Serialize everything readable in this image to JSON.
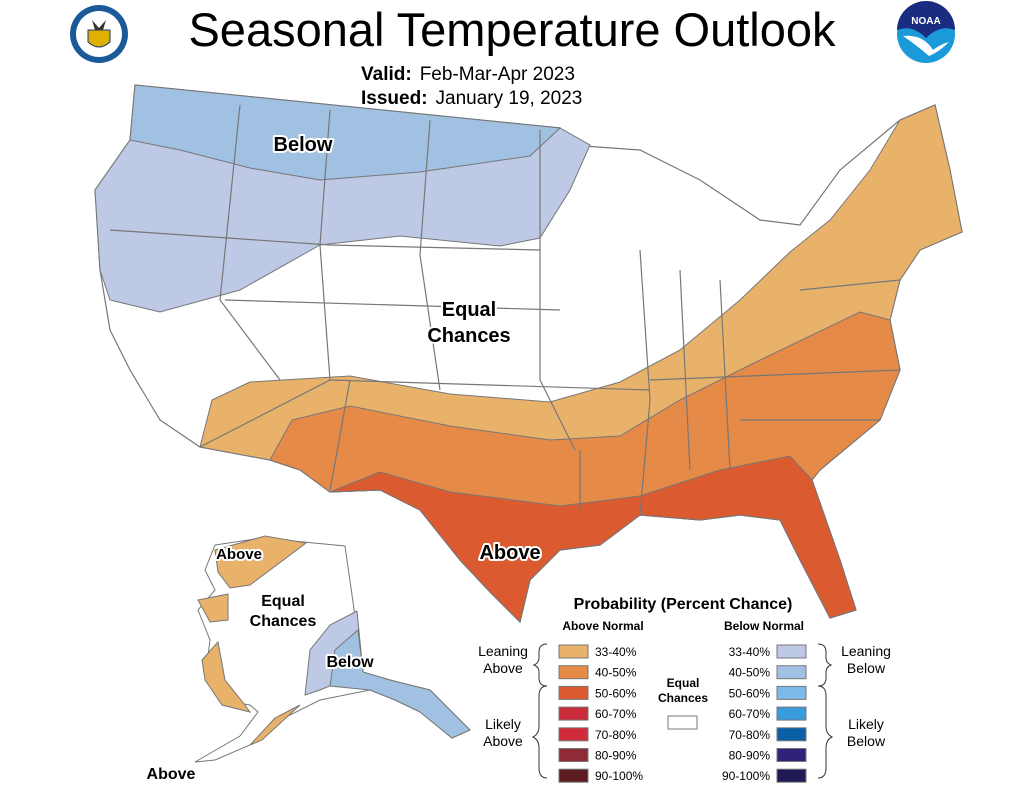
{
  "header": {
    "title": "Seasonal Temperature Outlook",
    "valid_label": "Valid:",
    "valid_value": "Feb-Mar-Apr 2023",
    "issued_label": "Issued:",
    "issued_value": "January 19, 2023",
    "left_logo": "department-of-commerce-seal",
    "right_logo": "noaa-logo",
    "right_logo_text": "NOAA"
  },
  "map_labels": {
    "conus_below": "Below",
    "conus_equal_1": "Equal",
    "conus_equal_2": "Chances",
    "conus_above": "Above",
    "ak_above_north": "Above",
    "ak_equal_1": "Equal",
    "ak_equal_2": "Chances",
    "ak_below": "Below",
    "ak_above_south": "Above"
  },
  "legend": {
    "title": "Probability (Percent Chance)",
    "above_header": "Above Normal",
    "below_header": "Below Normal",
    "leaning_above": [
      "Leaning",
      "Above"
    ],
    "likely_above": [
      "Likely",
      "Above"
    ],
    "leaning_below": [
      "Leaning",
      "Below"
    ],
    "likely_below": [
      "Likely",
      "Below"
    ],
    "equal_chances": [
      "Equal",
      "Chances"
    ],
    "equal_color": "#ffffff",
    "above": [
      {
        "range": "33-40%",
        "color": "#e9b26b"
      },
      {
        "range": "40-50%",
        "color": "#e58a47"
      },
      {
        "range": "50-60%",
        "color": "#dc5a30"
      },
      {
        "range": "60-70%",
        "color": "#c92b3a"
      },
      {
        "range": "70-80%",
        "color": "#d02b3b"
      },
      {
        "range": "80-90%",
        "color": "#8e2b37"
      },
      {
        "range": "90-100%",
        "color": "#5c1c21"
      }
    ],
    "below": [
      {
        "range": "33-40%",
        "color": "#bdc9e5"
      },
      {
        "range": "40-50%",
        "color": "#a0c1e1"
      },
      {
        "range": "50-60%",
        "color": "#7cb9e6"
      },
      {
        "range": "60-70%",
        "color": "#3a9bdd"
      },
      {
        "range": "70-80%",
        "color": "#0b5fa7"
      },
      {
        "range": "80-90%",
        "color": "#2f2377"
      },
      {
        "range": "90-100%",
        "color": "#1f1a55"
      }
    ]
  }
}
